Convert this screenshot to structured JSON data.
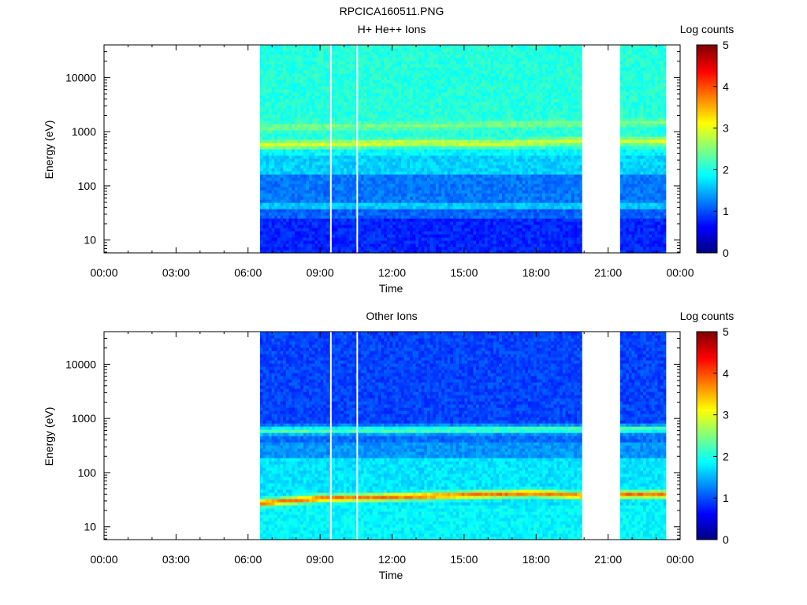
{
  "figure_title": "RPCICA160511.PNG",
  "colors": {
    "band_hot": "#ff3a00",
    "band_warm": "#ffd700",
    "background": "#ffffff"
  },
  "chart_data": [
    {
      "type": "heatmap",
      "title": "H+ He++ Ions",
      "xlabel": "Time",
      "ylabel": "Energy (eV)",
      "x_ticks": [
        "00:00",
        "03:00",
        "06:00",
        "09:00",
        "12:00",
        "15:00",
        "18:00",
        "21:00",
        "00:00"
      ],
      "x_range_hours": [
        0,
        24
      ],
      "y_scale": "log",
      "y_range": [
        5.8,
        40000
      ],
      "y_ticks": [
        {
          "value": 10,
          "label": "10"
        },
        {
          "value": 100,
          "label": "100"
        },
        {
          "value": 1000,
          "label": "1000"
        },
        {
          "value": 10000,
          "label": "10000"
        }
      ],
      "colorbar": {
        "label": "Log counts",
        "range": [
          0,
          5
        ],
        "ticks": [
          "0",
          "1",
          "2",
          "3",
          "4",
          "5"
        ]
      },
      "data_intervals_hours": [
        [
          6.5,
          19.9
        ],
        [
          21.5,
          23.4
        ]
      ],
      "data_gaps_hours": [
        9.45,
        10.55
      ],
      "background_levels": [
        {
          "e_min": 5.8,
          "e_max": 25,
          "log_counts": 0.8
        },
        {
          "e_min": 25,
          "e_max": 40,
          "log_counts": 1.1
        },
        {
          "e_min": 40,
          "e_max": 50,
          "log_counts": 1.6
        },
        {
          "e_min": 50,
          "e_max": 160,
          "log_counts": 1.2
        },
        {
          "e_min": 160,
          "e_max": 380,
          "log_counts": 1.65
        },
        {
          "e_min": 380,
          "e_max": 500,
          "log_counts": 1.85
        },
        {
          "e_min": 500,
          "e_max": 40000,
          "log_counts": 2.05
        }
      ],
      "bands": [
        {
          "energy": 620,
          "log_counts": 2.95,
          "time_hours": [
            6.5,
            13.5,
            16.2,
            20.0,
            21.5,
            23.4
          ],
          "energy_profile": [
            580,
            640,
            600,
            700,
            680,
            680
          ]
        },
        {
          "energy": 1280,
          "log_counts": 2.5,
          "time_hours": [
            6.5,
            23.4
          ],
          "energy_profile": [
            1200,
            1500
          ]
        }
      ]
    },
    {
      "type": "heatmap",
      "title": "Other Ions",
      "xlabel": "Time",
      "ylabel": "Energy (eV)",
      "x_ticks": [
        "00:00",
        "03:00",
        "06:00",
        "09:00",
        "12:00",
        "15:00",
        "18:00",
        "21:00",
        "00:00"
      ],
      "x_range_hours": [
        0,
        24
      ],
      "y_scale": "log",
      "y_range": [
        5.8,
        40000
      ],
      "y_ticks": [
        {
          "value": 10,
          "label": "10"
        },
        {
          "value": 100,
          "label": "100"
        },
        {
          "value": 1000,
          "label": "1000"
        },
        {
          "value": 10000,
          "label": "10000"
        }
      ],
      "colorbar": {
        "label": "Log counts",
        "range": [
          0,
          5
        ],
        "ticks": [
          "0",
          "1",
          "2",
          "3",
          "4",
          "5"
        ]
      },
      "data_intervals_hours": [
        [
          6.5,
          19.9
        ],
        [
          21.5,
          23.4
        ]
      ],
      "data_gaps_hours": [
        9.45,
        10.55
      ],
      "background_levels": [
        {
          "e_min": 5.8,
          "e_max": 25,
          "log_counts": 1.85
        },
        {
          "e_min": 25,
          "e_max": 200,
          "log_counts": 1.75
        },
        {
          "e_min": 200,
          "e_max": 380,
          "log_counts": 1.35
        },
        {
          "e_min": 380,
          "e_max": 800,
          "log_counts": 1.15
        },
        {
          "e_min": 800,
          "e_max": 40000,
          "log_counts": 0.95
        }
      ],
      "bands": [
        {
          "energy": 37,
          "log_counts": 3.8,
          "time_hours": [
            6.5,
            9.0,
            12.0,
            17.8,
            20.0,
            21.5,
            23.4
          ],
          "energy_profile": [
            28,
            34,
            36,
            42,
            38,
            40,
            40
          ]
        },
        {
          "energy": 620,
          "log_counts": 2.3,
          "time_hours": [
            6.5,
            23.4
          ],
          "energy_profile": [
            600,
            650
          ]
        }
      ]
    }
  ]
}
